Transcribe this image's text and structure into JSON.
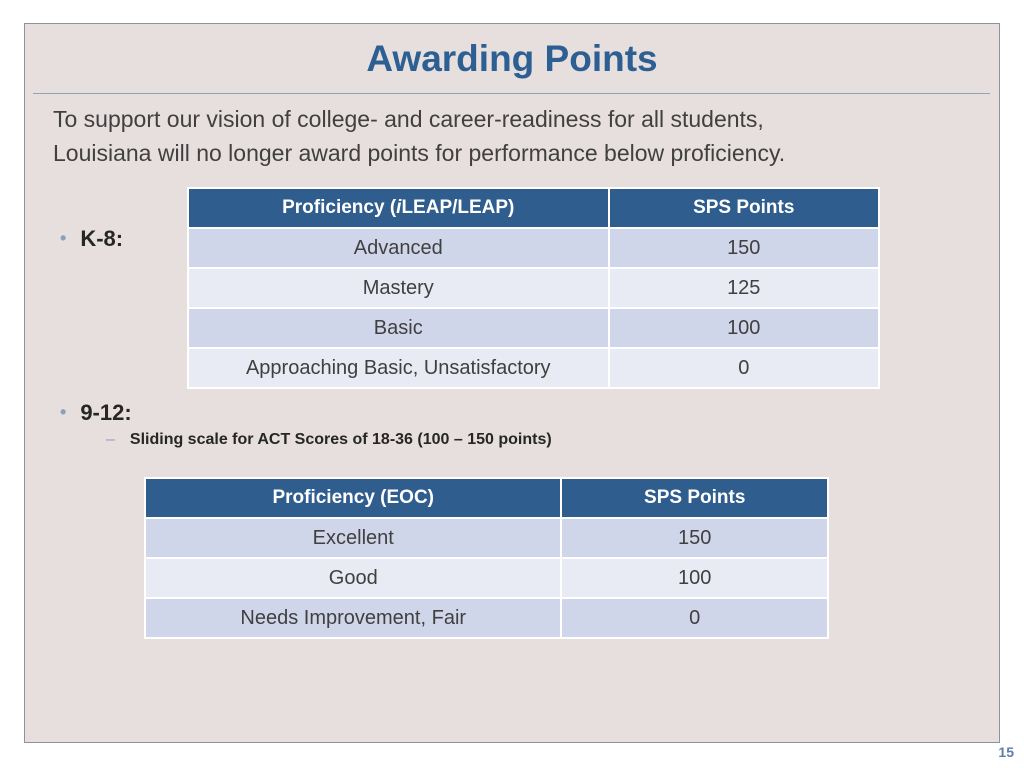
{
  "slide": {
    "title": "Awarding Points",
    "intro_line1": "To support our vision of college- and career-readiness for all students,",
    "intro_line2": "Louisiana will no longer award points for performance below proficiency.",
    "page_number": "15"
  },
  "k8": {
    "bullet": "K-8:",
    "table": {
      "header_prefix": "Proficiency (",
      "header_italic": "i",
      "header_suffix": "LEAP/LEAP)",
      "header_points": "SPS Points",
      "rows": [
        {
          "level": "Advanced",
          "points": "150"
        },
        {
          "level": "Mastery",
          "points": "125"
        },
        {
          "level": "Basic",
          "points": "100"
        },
        {
          "level": "Approaching Basic, Unsatisfactory",
          "points": "0"
        }
      ]
    }
  },
  "hs": {
    "bullet": "9-12:",
    "sub_bullet": "Sliding scale for ACT Scores of 18-36 (100 – 150 points)",
    "table": {
      "header_proficiency": "Proficiency (EOC)",
      "header_points": "SPS Points",
      "rows": [
        {
          "level": "Excellent",
          "points": "150"
        },
        {
          "level": "Good",
          "points": "100"
        },
        {
          "level": "Needs Improvement, Fair",
          "points": "0"
        }
      ]
    }
  }
}
